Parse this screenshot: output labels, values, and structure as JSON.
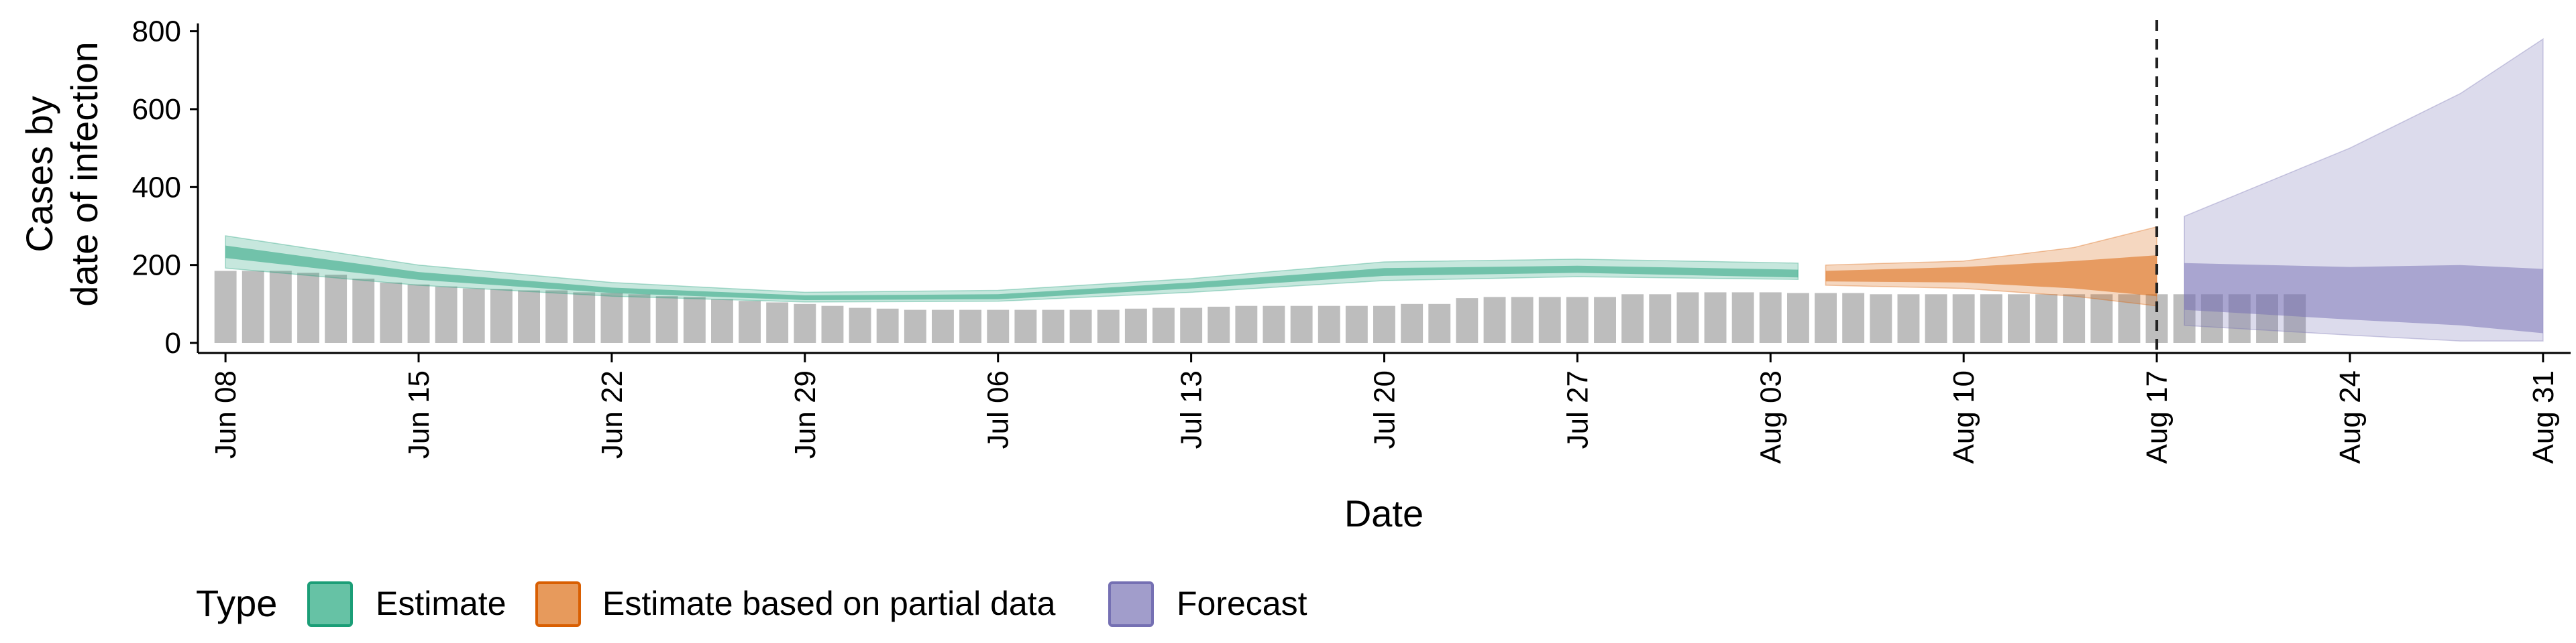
{
  "chart_data": {
    "type": "area",
    "xlabel": "Date",
    "ylabel_lines": [
      "Cases by",
      "date of infection"
    ],
    "ylim": [
      0,
      820
    ],
    "y_ticks": [
      0,
      200,
      400,
      600,
      800
    ],
    "x_range": [
      "2020-06-07",
      "2020-09-01"
    ],
    "x_ticks": [
      {
        "date": "2020-06-08",
        "label": "Jun 08"
      },
      {
        "date": "2020-06-15",
        "label": "Jun 15"
      },
      {
        "date": "2020-06-22",
        "label": "Jun 22"
      },
      {
        "date": "2020-06-29",
        "label": "Jun 29"
      },
      {
        "date": "2020-07-06",
        "label": "Jul 06"
      },
      {
        "date": "2020-07-13",
        "label": "Jul 13"
      },
      {
        "date": "2020-07-20",
        "label": "Jul 20"
      },
      {
        "date": "2020-07-27",
        "label": "Jul 27"
      },
      {
        "date": "2020-08-03",
        "label": "Aug 03"
      },
      {
        "date": "2020-08-10",
        "label": "Aug 10"
      },
      {
        "date": "2020-08-17",
        "label": "Aug 17"
      },
      {
        "date": "2020-08-24",
        "label": "Aug 24"
      },
      {
        "date": "2020-08-31",
        "label": "Aug 31"
      }
    ],
    "vline_date": "2020-08-17",
    "bars": {
      "color": "#bdbdbd",
      "start_date": "2020-06-08",
      "values": [
        185,
        185,
        185,
        180,
        175,
        165,
        155,
        150,
        145,
        140,
        138,
        135,
        135,
        130,
        128,
        125,
        120,
        118,
        112,
        108,
        104,
        100,
        95,
        90,
        88,
        85,
        85,
        85,
        85,
        85,
        85,
        85,
        85,
        88,
        90,
        90,
        93,
        95,
        95,
        95,
        95,
        95,
        95,
        100,
        100,
        115,
        118,
        118,
        118,
        118,
        118,
        125,
        125,
        130,
        130,
        130,
        130,
        128,
        128,
        128,
        125,
        125,
        125,
        125,
        125,
        125,
        125,
        125,
        125,
        125,
        125,
        125,
        125,
        125,
        125,
        125
      ]
    },
    "legend": {
      "title": "Type",
      "items": [
        {
          "label": "Estimate",
          "fill": "#66c2a5",
          "stroke": "#1b9e77"
        },
        {
          "label": "Estimate based on partial data",
          "fill": "#e79a5c",
          "stroke": "#d95f02"
        },
        {
          "label": "Forecast",
          "fill": "#a19dcb",
          "stroke": "#7570b3"
        }
      ]
    },
    "series": [
      {
        "name": "Estimate",
        "color": "#1b9e77",
        "dates": [
          "2020-06-08",
          "2020-06-15",
          "2020-06-22",
          "2020-06-29",
          "2020-07-06",
          "2020-07-13",
          "2020-07-20",
          "2020-07-27",
          "2020-08-04"
        ],
        "outer_lo": [
          192,
          148,
          120,
          105,
          107,
          130,
          160,
          170,
          163
        ],
        "outer_hi": [
          275,
          200,
          155,
          130,
          135,
          165,
          208,
          215,
          205
        ],
        "inner_lo": [
          218,
          162,
          128,
          110,
          112,
          140,
          172,
          180,
          168
        ],
        "inner_hi": [
          250,
          182,
          142,
          122,
          125,
          155,
          192,
          198,
          188
        ]
      },
      {
        "name": "Estimate based on partial data",
        "color": "#d95f02",
        "dates": [
          "2020-08-05",
          "2020-08-10",
          "2020-08-14",
          "2020-08-17"
        ],
        "outer_lo": [
          148,
          140,
          120,
          95
        ],
        "outer_hi": [
          200,
          210,
          245,
          298
        ],
        "inner_lo": [
          158,
          155,
          140,
          120
        ],
        "inner_hi": [
          185,
          195,
          210,
          225
        ]
      },
      {
        "name": "Forecast",
        "color": "#7570b3",
        "dates": [
          "2020-08-18",
          "2020-08-24",
          "2020-08-28",
          "2020-08-31"
        ],
        "outer_lo": [
          45,
          20,
          5,
          5
        ],
        "outer_hi": [
          325,
          500,
          640,
          780
        ],
        "inner_lo": [
          85,
          60,
          45,
          25
        ],
        "inner_hi": [
          205,
          195,
          200,
          190
        ]
      }
    ]
  }
}
